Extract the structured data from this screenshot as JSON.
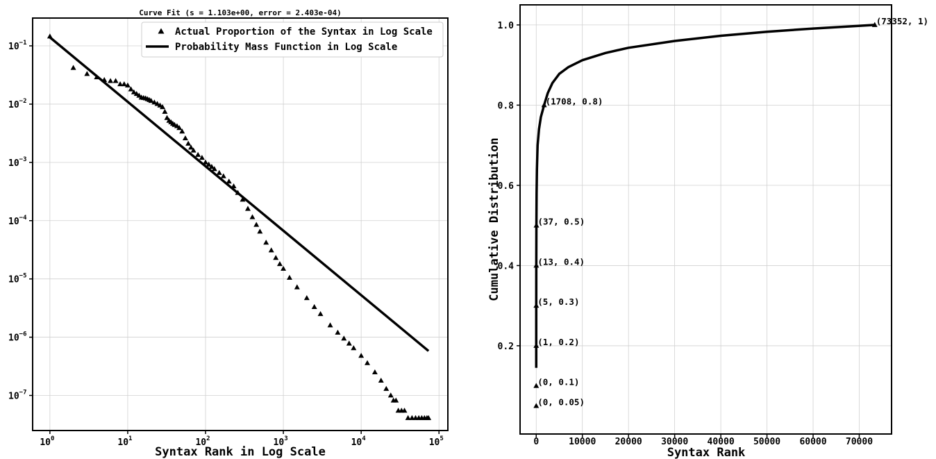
{
  "chart_data": [
    {
      "type": "scatter",
      "title": "Curve Fit (s = 1.103e+00, error = 2.403e-04)",
      "xlabel": "Syntax Rank in Log Scale",
      "ylabel": "",
      "xscale": "log",
      "yscale": "log",
      "xlim": [
        0.6,
        130000
      ],
      "ylim": [
        2.5e-08,
        0.3
      ],
      "xticks": [
        {
          "value": 1,
          "base": "10",
          "exp": "0"
        },
        {
          "value": 10,
          "base": "10",
          "exp": "1"
        },
        {
          "value": 100,
          "base": "10",
          "exp": "2"
        },
        {
          "value": 1000,
          "base": "10",
          "exp": "3"
        },
        {
          "value": 10000,
          "base": "10",
          "exp": "4"
        },
        {
          "value": 100000,
          "base": "10",
          "exp": "5"
        }
      ],
      "yticks": [
        {
          "value": 0.1,
          "base": "10",
          "exp": "−1"
        },
        {
          "value": 0.01,
          "base": "10",
          "exp": "−2"
        },
        {
          "value": 0.001,
          "base": "10",
          "exp": "−3"
        },
        {
          "value": 0.0001,
          "base": "10",
          "exp": "−4"
        },
        {
          "value": 1e-05,
          "base": "10",
          "exp": "−5"
        },
        {
          "value": 1e-06,
          "base": "10",
          "exp": "−6"
        },
        {
          "value": 1e-07,
          "base": "10",
          "exp": "−7"
        }
      ],
      "grid": true,
      "legend_position": "top-right",
      "series": [
        {
          "name": "Actual Proportion of the Syntax in Log Scale",
          "marker": "triangle",
          "color": "#000000",
          "points": [
            [
              1,
              0.145
            ],
            [
              2,
              0.042
            ],
            [
              3,
              0.033
            ],
            [
              4,
              0.029
            ],
            [
              5,
              0.026
            ],
            [
              6,
              0.025
            ],
            [
              7,
              0.025
            ],
            [
              8,
              0.022
            ],
            [
              9,
              0.022
            ],
            [
              10,
              0.021
            ],
            [
              11,
              0.018
            ],
            [
              12,
              0.016
            ],
            [
              13,
              0.015
            ],
            [
              14,
              0.014
            ],
            [
              15,
              0.013
            ],
            [
              16,
              0.0128
            ],
            [
              17,
              0.0126
            ],
            [
              18,
              0.0122
            ],
            [
              19,
              0.0118
            ],
            [
              20,
              0.0114
            ],
            [
              22,
              0.0107
            ],
            [
              24,
              0.0101
            ],
            [
              26,
              0.0095
            ],
            [
              28,
              0.0089
            ],
            [
              30,
              0.0074
            ],
            [
              32,
              0.0058
            ],
            [
              34,
              0.0052
            ],
            [
              36,
              0.0049
            ],
            [
              38,
              0.0046
            ],
            [
              40,
              0.0044
            ],
            [
              43,
              0.0042
            ],
            [
              46,
              0.0039
            ],
            [
              50,
              0.0034
            ],
            [
              55,
              0.0026
            ],
            [
              60,
              0.0021
            ],
            [
              65,
              0.0018
            ],
            [
              70,
              0.0016
            ],
            [
              80,
              0.00135
            ],
            [
              90,
              0.0012
            ],
            [
              100,
              0.001
            ],
            [
              110,
              0.00092
            ],
            [
              120,
              0.00084
            ],
            [
              130,
              0.00077
            ],
            [
              150,
              0.00066
            ],
            [
              170,
              0.00058
            ],
            [
              200,
              0.00047
            ],
            [
              230,
              0.00039
            ],
            [
              260,
              0.0003
            ],
            [
              300,
              0.00023
            ],
            [
              350,
              0.00016
            ],
            [
              400,
              0.000115
            ],
            [
              450,
              8.5e-05
            ],
            [
              500,
              6.5e-05
            ],
            [
              600,
              4.2e-05
            ],
            [
              700,
              3.1e-05
            ],
            [
              800,
              2.3e-05
            ],
            [
              900,
              1.8e-05
            ],
            [
              1000,
              1.5e-05
            ],
            [
              1200,
              1.05e-05
            ],
            [
              1500,
              7.2e-06
            ],
            [
              2000,
              4.7e-06
            ],
            [
              2500,
              3.3e-06
            ],
            [
              3000,
              2.5e-06
            ],
            [
              4000,
              1.6e-06
            ],
            [
              5000,
              1.2e-06
            ],
            [
              6000,
              9.5e-07
            ],
            [
              7000,
              7.8e-07
            ],
            [
              8000,
              6.5e-07
            ],
            [
              10000,
              4.8e-07
            ],
            [
              12000,
              3.6e-07
            ],
            [
              15000,
              2.5e-07
            ],
            [
              18000,
              1.8e-07
            ],
            [
              21000,
              1.3e-07
            ],
            [
              24000,
              1e-07
            ],
            [
              26000,
              8.2e-08
            ],
            [
              28000,
              8.2e-08
            ],
            [
              30000,
              5.5e-08
            ],
            [
              33000,
              5.5e-08
            ],
            [
              36000,
              5.5e-08
            ],
            [
              40000,
              4.1e-08
            ],
            [
              45000,
              4.1e-08
            ],
            [
              50000,
              4.1e-08
            ],
            [
              55000,
              4.1e-08
            ],
            [
              60000,
              4.1e-08
            ],
            [
              65000,
              4.1e-08
            ],
            [
              70000,
              4.1e-08
            ],
            [
              73352,
              4.1e-08
            ]
          ]
        },
        {
          "name": "Probability Mass Function in Log Scale",
          "marker": "line",
          "color": "#000000",
          "points": [
            [
              1,
              0.14
            ],
            [
              73352,
              5.8e-07
            ]
          ]
        }
      ]
    },
    {
      "type": "line",
      "title": "",
      "xlabel": "Syntax Rank",
      "ylabel": "Cumulative Distribution",
      "xlim": [
        -3500,
        77000
      ],
      "ylim": [
        -0.02,
        1.05
      ],
      "xticks": [
        0,
        10000,
        20000,
        30000,
        40000,
        50000,
        60000,
        70000
      ],
      "yticks": [
        0.2,
        0.4,
        0.6,
        0.8,
        1.0
      ],
      "xtick_labels": [
        "0",
        "10000",
        "20000",
        "30000",
        "40000",
        "50000",
        "60000",
        "70000"
      ],
      "ytick_labels": [
        "0.2",
        "0.4",
        "0.6",
        "0.8",
        "1.0"
      ],
      "grid": true,
      "series": [
        {
          "name": "",
          "color": "#000000",
          "points": [
            [
              1,
              0.145
            ],
            [
              1,
              0.2
            ],
            [
              5,
              0.3
            ],
            [
              13,
              0.4
            ],
            [
              37,
              0.5
            ],
            [
              80,
              0.58
            ],
            [
              150,
              0.64
            ],
            [
              300,
              0.7
            ],
            [
              600,
              0.74
            ],
            [
              1000,
              0.77
            ],
            [
              1708,
              0.8
            ],
            [
              2500,
              0.83
            ],
            [
              3500,
              0.855
            ],
            [
              5000,
              0.878
            ],
            [
              7000,
              0.895
            ],
            [
              10000,
              0.912
            ],
            [
              15000,
              0.93
            ],
            [
              20000,
              0.943
            ],
            [
              30000,
              0.96
            ],
            [
              40000,
              0.973
            ],
            [
              50000,
              0.983
            ],
            [
              60000,
              0.991
            ],
            [
              73352,
              1.0
            ]
          ]
        }
      ],
      "annotations": [
        {
          "x": 0,
          "y": 0.05,
          "label": "(0, 0.05)"
        },
        {
          "x": 0,
          "y": 0.1,
          "label": "(0, 0.1)"
        },
        {
          "x": 1,
          "y": 0.2,
          "label": "(1, 0.2)"
        },
        {
          "x": 5,
          "y": 0.3,
          "label": "(5, 0.3)"
        },
        {
          "x": 13,
          "y": 0.4,
          "label": "(13, 0.4)"
        },
        {
          "x": 37,
          "y": 0.5,
          "label": "(37, 0.5)"
        },
        {
          "x": 1708,
          "y": 0.8,
          "label": "(1708, 0.8)"
        },
        {
          "x": 73352,
          "y": 1.0,
          "label": "(73352, 1)"
        }
      ]
    }
  ]
}
